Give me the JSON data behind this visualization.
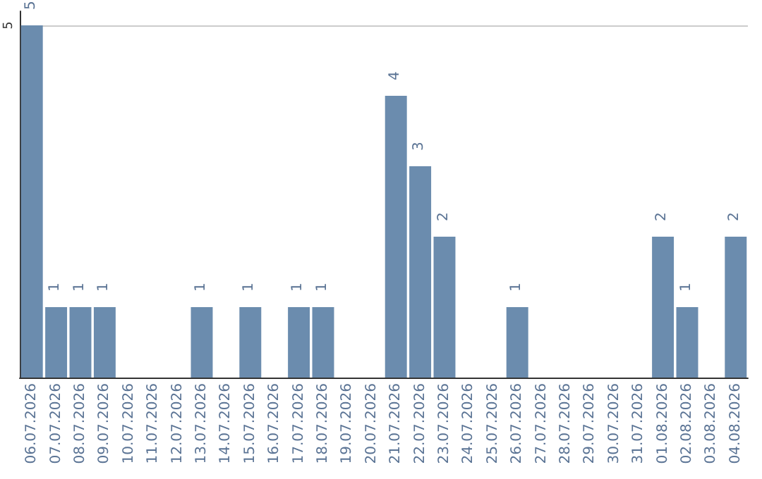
{
  "chart_data": {
    "type": "bar",
    "categories": [
      "06.07.2026",
      "07.07.2026",
      "08.07.2026",
      "09.07.2026",
      "10.07.2026",
      "11.07.2026",
      "12.07.2026",
      "13.07.2026",
      "14.07.2026",
      "15.07.2026",
      "16.07.2026",
      "17.07.2026",
      "18.07.2026",
      "19.07.2026",
      "20.07.2026",
      "21.07.2026",
      "22.07.2026",
      "23.07.2026",
      "24.07.2026",
      "25.07.2026",
      "26.07.2026",
      "27.07.2026",
      "28.07.2026",
      "29.07.2026",
      "30.07.2026",
      "31.07.2026",
      "01.08.2026",
      "02.08.2026",
      "03.08.2026",
      "04.08.2026"
    ],
    "values": [
      5,
      1,
      1,
      1,
      0,
      0,
      0,
      1,
      0,
      1,
      0,
      1,
      1,
      0,
      0,
      4,
      3,
      2,
      0,
      0,
      1,
      0,
      0,
      0,
      0,
      0,
      2,
      1,
      0,
      2
    ],
    "value_labels": [
      "5",
      "1",
      "1",
      "1",
      null,
      null,
      null,
      "1",
      null,
      "1",
      null,
      "1",
      "1",
      null,
      null,
      "4",
      "3",
      "2",
      null,
      null,
      "1",
      null,
      null,
      null,
      null,
      null,
      "2",
      "1",
      null,
      "2"
    ],
    "color": "#6b8cae",
    "ylim": [
      0,
      5.2
    ],
    "yticks": [
      5
    ],
    "grid": "y"
  }
}
